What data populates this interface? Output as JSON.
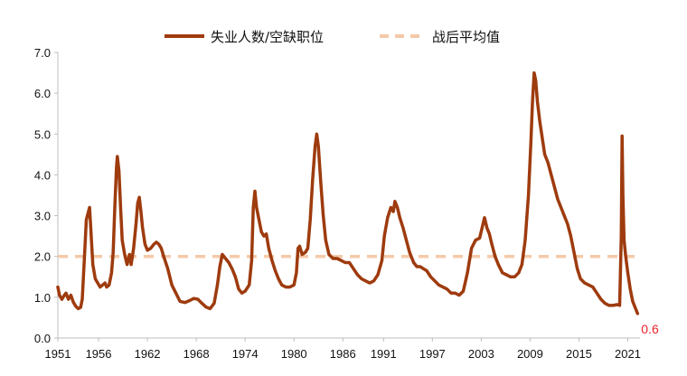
{
  "chart_data": {
    "type": "line",
    "title": "",
    "xlabel": "",
    "ylabel": "",
    "xlim": [
      1951,
      2022.5
    ],
    "ylim": [
      0,
      7
    ],
    "grid": false,
    "legend_position": "top",
    "y_ticks": [
      "0.0",
      "1.0",
      "2.0",
      "3.0",
      "4.0",
      "5.0",
      "6.0",
      "7.0"
    ],
    "x_ticks": [
      "1951",
      "1956",
      "1962",
      "1968",
      "1974",
      "1980",
      "1986",
      "1991",
      "1997",
      "2003",
      "2009",
      "2015",
      "2021"
    ],
    "colors": {
      "main": "#9e3b0e",
      "avg": "#f5c9a8",
      "end_label": "#e8232b",
      "axis": "#bfbfbf"
    },
    "end_annotation": {
      "text": "0.6"
    },
    "series": [
      {
        "name": "失业人数/空缺职位",
        "style": "solid",
        "points": [
          [
            1951.0,
            1.25
          ],
          [
            1951.2,
            1.05
          ],
          [
            1951.5,
            0.95
          ],
          [
            1951.8,
            1.05
          ],
          [
            1952.0,
            1.1
          ],
          [
            1952.3,
            0.95
          ],
          [
            1952.6,
            1.05
          ],
          [
            1952.9,
            0.88
          ],
          [
            1953.2,
            0.78
          ],
          [
            1953.5,
            0.72
          ],
          [
            1953.8,
            0.75
          ],
          [
            1954.0,
            0.95
          ],
          [
            1954.3,
            2.1
          ],
          [
            1954.5,
            2.9
          ],
          [
            1954.7,
            3.05
          ],
          [
            1954.9,
            3.2
          ],
          [
            1955.1,
            2.5
          ],
          [
            1955.3,
            1.8
          ],
          [
            1955.6,
            1.45
          ],
          [
            1955.9,
            1.35
          ],
          [
            1956.2,
            1.25
          ],
          [
            1956.5,
            1.3
          ],
          [
            1956.8,
            1.35
          ],
          [
            1957.0,
            1.25
          ],
          [
            1957.3,
            1.3
          ],
          [
            1957.6,
            1.6
          ],
          [
            1957.8,
            2.1
          ],
          [
            1958.0,
            3.2
          ],
          [
            1958.2,
            4.2
          ],
          [
            1958.3,
            4.45
          ],
          [
            1958.5,
            4.1
          ],
          [
            1958.7,
            3.2
          ],
          [
            1958.9,
            2.4
          ],
          [
            1959.2,
            2.05
          ],
          [
            1959.5,
            1.8
          ],
          [
            1959.8,
            2.05
          ],
          [
            1960.0,
            1.8
          ],
          [
            1960.3,
            2.2
          ],
          [
            1960.6,
            2.8
          ],
          [
            1960.8,
            3.3
          ],
          [
            1961.0,
            3.45
          ],
          [
            1961.2,
            3.1
          ],
          [
            1961.4,
            2.7
          ],
          [
            1961.7,
            2.3
          ],
          [
            1962.0,
            2.15
          ],
          [
            1962.4,
            2.2
          ],
          [
            1962.8,
            2.3
          ],
          [
            1963.1,
            2.35
          ],
          [
            1963.4,
            2.3
          ],
          [
            1963.7,
            2.2
          ],
          [
            1964.0,
            2.0
          ],
          [
            1964.5,
            1.7
          ],
          [
            1965.0,
            1.3
          ],
          [
            1965.5,
            1.1
          ],
          [
            1966.0,
            0.9
          ],
          [
            1966.6,
            0.87
          ],
          [
            1967.2,
            0.92
          ],
          [
            1967.7,
            0.97
          ],
          [
            1968.2,
            0.95
          ],
          [
            1968.7,
            0.85
          ],
          [
            1969.2,
            0.76
          ],
          [
            1969.7,
            0.72
          ],
          [
            1970.2,
            0.85
          ],
          [
            1970.6,
            1.3
          ],
          [
            1970.9,
            1.75
          ],
          [
            1971.2,
            2.05
          ],
          [
            1971.6,
            1.95
          ],
          [
            1972.0,
            1.85
          ],
          [
            1972.4,
            1.7
          ],
          [
            1972.8,
            1.5
          ],
          [
            1973.2,
            1.2
          ],
          [
            1973.6,
            1.1
          ],
          [
            1974.0,
            1.15
          ],
          [
            1974.5,
            1.3
          ],
          [
            1974.8,
            1.9
          ],
          [
            1975.0,
            3.2
          ],
          [
            1975.2,
            3.6
          ],
          [
            1975.4,
            3.2
          ],
          [
            1975.7,
            2.9
          ],
          [
            1976.0,
            2.6
          ],
          [
            1976.3,
            2.5
          ],
          [
            1976.6,
            2.55
          ],
          [
            1976.9,
            2.2
          ],
          [
            1977.3,
            1.9
          ],
          [
            1977.7,
            1.65
          ],
          [
            1978.1,
            1.45
          ],
          [
            1978.5,
            1.3
          ],
          [
            1979.0,
            1.25
          ],
          [
            1979.5,
            1.25
          ],
          [
            1980.0,
            1.3
          ],
          [
            1980.3,
            1.6
          ],
          [
            1980.5,
            2.2
          ],
          [
            1980.7,
            2.25
          ],
          [
            1981.0,
            2.05
          ],
          [
            1981.4,
            2.1
          ],
          [
            1981.7,
            2.2
          ],
          [
            1982.0,
            2.9
          ],
          [
            1982.3,
            3.9
          ],
          [
            1982.6,
            4.7
          ],
          [
            1982.8,
            5.0
          ],
          [
            1983.0,
            4.7
          ],
          [
            1983.3,
            3.8
          ],
          [
            1983.6,
            3.0
          ],
          [
            1983.9,
            2.4
          ],
          [
            1984.3,
            2.05
          ],
          [
            1984.8,
            1.95
          ],
          [
            1985.3,
            1.95
          ],
          [
            1985.8,
            1.9
          ],
          [
            1986.3,
            1.85
          ],
          [
            1986.8,
            1.85
          ],
          [
            1987.3,
            1.7
          ],
          [
            1987.8,
            1.55
          ],
          [
            1988.3,
            1.45
          ],
          [
            1988.8,
            1.4
          ],
          [
            1989.3,
            1.35
          ],
          [
            1989.8,
            1.4
          ],
          [
            1990.3,
            1.55
          ],
          [
            1990.8,
            1.9
          ],
          [
            1991.1,
            2.5
          ],
          [
            1991.5,
            2.95
          ],
          [
            1991.9,
            3.2
          ],
          [
            1992.2,
            3.1
          ],
          [
            1992.4,
            3.35
          ],
          [
            1992.7,
            3.2
          ],
          [
            1993.0,
            2.95
          ],
          [
            1993.4,
            2.7
          ],
          [
            1993.8,
            2.4
          ],
          [
            1994.2,
            2.1
          ],
          [
            1994.7,
            1.85
          ],
          [
            1995.1,
            1.75
          ],
          [
            1995.5,
            1.75
          ],
          [
            1995.9,
            1.7
          ],
          [
            1996.3,
            1.65
          ],
          [
            1996.8,
            1.5
          ],
          [
            1997.3,
            1.4
          ],
          [
            1997.8,
            1.3
          ],
          [
            1998.3,
            1.25
          ],
          [
            1998.8,
            1.2
          ],
          [
            1999.3,
            1.1
          ],
          [
            1999.8,
            1.1
          ],
          [
            2000.3,
            1.05
          ],
          [
            2000.8,
            1.15
          ],
          [
            2001.3,
            1.6
          ],
          [
            2001.8,
            2.2
          ],
          [
            2002.3,
            2.4
          ],
          [
            2002.8,
            2.45
          ],
          [
            2003.1,
            2.7
          ],
          [
            2003.4,
            2.95
          ],
          [
            2003.7,
            2.7
          ],
          [
            2004.0,
            2.55
          ],
          [
            2004.3,
            2.3
          ],
          [
            2004.7,
            2.0
          ],
          [
            2005.1,
            1.8
          ],
          [
            2005.6,
            1.6
          ],
          [
            2006.1,
            1.55
          ],
          [
            2006.6,
            1.5
          ],
          [
            2007.1,
            1.5
          ],
          [
            2007.6,
            1.6
          ],
          [
            2008.0,
            1.8
          ],
          [
            2008.4,
            2.4
          ],
          [
            2008.8,
            3.5
          ],
          [
            2009.1,
            4.8
          ],
          [
            2009.3,
            5.8
          ],
          [
            2009.5,
            6.5
          ],
          [
            2009.7,
            6.3
          ],
          [
            2009.9,
            5.8
          ],
          [
            2010.2,
            5.3
          ],
          [
            2010.5,
            4.9
          ],
          [
            2010.8,
            4.5
          ],
          [
            2011.2,
            4.3
          ],
          [
            2011.6,
            4.0
          ],
          [
            2012.0,
            3.7
          ],
          [
            2012.4,
            3.4
          ],
          [
            2012.8,
            3.2
          ],
          [
            2013.2,
            3.0
          ],
          [
            2013.6,
            2.8
          ],
          [
            2014.0,
            2.5
          ],
          [
            2014.4,
            2.1
          ],
          [
            2014.8,
            1.7
          ],
          [
            2015.2,
            1.45
          ],
          [
            2015.7,
            1.35
          ],
          [
            2016.2,
            1.3
          ],
          [
            2016.7,
            1.25
          ],
          [
            2017.2,
            1.1
          ],
          [
            2017.7,
            0.95
          ],
          [
            2018.2,
            0.85
          ],
          [
            2018.7,
            0.8
          ],
          [
            2019.2,
            0.8
          ],
          [
            2019.7,
            0.82
          ],
          [
            2020.0,
            0.8
          ],
          [
            2020.2,
            2.5
          ],
          [
            2020.3,
            4.95
          ],
          [
            2020.4,
            3.5
          ],
          [
            2020.55,
            2.4
          ],
          [
            2020.75,
            2.0
          ],
          [
            2021.0,
            1.6
          ],
          [
            2021.3,
            1.2
          ],
          [
            2021.6,
            0.9
          ],
          [
            2021.9,
            0.75
          ],
          [
            2022.2,
            0.6
          ]
        ]
      },
      {
        "name": "战后平均值",
        "style": "dashed",
        "points": [
          [
            1951.0,
            2.0
          ],
          [
            2022.2,
            2.0
          ]
        ]
      }
    ]
  }
}
